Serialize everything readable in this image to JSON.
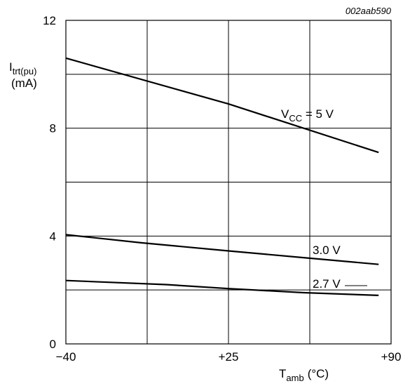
{
  "figure_code": "002aab590",
  "chart_data": {
    "type": "line",
    "title": "",
    "ylabel": {
      "main": "I",
      "sub": "trt(pu)",
      "unit": "(mA)"
    },
    "xlabel": {
      "main": "T",
      "sub": "amb",
      "unit": "(°C)"
    },
    "xlim": [
      -40,
      90
    ],
    "ylim": [
      0,
      12
    ],
    "grid": true,
    "x_ticks": [
      {
        "value": -40,
        "label": "−40"
      },
      {
        "value": 25,
        "label": "+25"
      },
      {
        "value": 90,
        "label": "+90"
      }
    ],
    "y_ticks": [
      {
        "value": 0,
        "label": "0"
      },
      {
        "value": 4,
        "label": "4"
      },
      {
        "value": 8,
        "label": "8"
      },
      {
        "value": 12,
        "label": "12"
      }
    ],
    "x_grid": [
      -40,
      -7.5,
      25,
      57.5,
      90
    ],
    "y_grid": [
      0,
      2,
      4,
      6,
      8,
      10,
      12
    ],
    "series": [
      {
        "x": [
          -40,
          25,
          85
        ],
        "y": [
          10.6,
          8.9,
          7.1
        ]
      },
      {
        "x": [
          -40,
          -10,
          25,
          55,
          85
        ],
        "y": [
          4.05,
          3.75,
          3.45,
          3.2,
          2.95
        ]
      },
      {
        "x": [
          -40,
          0,
          25,
          55,
          85
        ],
        "y": [
          2.35,
          2.2,
          2.05,
          1.9,
          1.8
        ]
      }
    ],
    "annotations": [
      {
        "main": "V",
        "sub": "CC",
        "rest": " = 5 V"
      },
      {
        "main": "3.0 V"
      },
      {
        "main": "2.7 V"
      }
    ]
  }
}
